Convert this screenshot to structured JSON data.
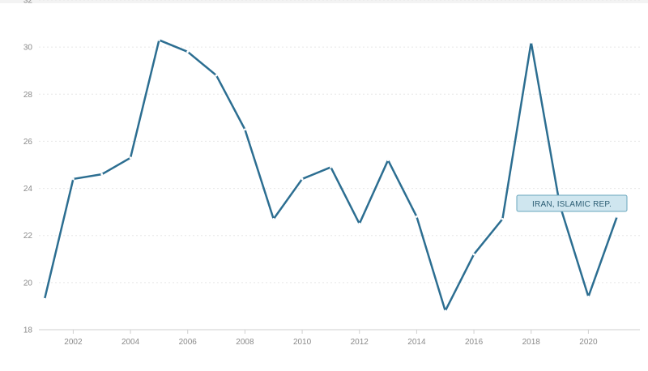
{
  "chart_data": {
    "type": "line",
    "x": [
      2001,
      2002,
      2003,
      2004,
      2005,
      2006,
      2007,
      2008,
      2009,
      2010,
      2011,
      2012,
      2013,
      2014,
      2015,
      2016,
      2017,
      2018,
      2019,
      2020,
      2021
    ],
    "series": [
      {
        "name": "IRAN, ISLAMIC REP.",
        "color": "#2c6e91",
        "values": [
          19.3,
          24.4,
          24.6,
          25.3,
          30.3,
          29.8,
          28.8,
          26.5,
          22.7,
          24.4,
          24.9,
          22.5,
          25.2,
          22.8,
          18.8,
          21.2,
          22.7,
          30.2,
          23.3,
          19.4,
          22.8
        ]
      }
    ],
    "x_ticks": [
      "2002",
      "2004",
      "2006",
      "2008",
      "2010",
      "2012",
      "2014",
      "2016",
      "2018",
      "2020"
    ],
    "y_ticks": [
      "18",
      "20",
      "22",
      "24",
      "26",
      "28",
      "30",
      "32"
    ],
    "xlim": [
      2000.8,
      2021.8
    ],
    "ylim": [
      18,
      32
    ],
    "grid": true,
    "legend": "none",
    "tooltip": {
      "label": "IRAN, ISLAMIC REP.",
      "year": 2019
    }
  }
}
